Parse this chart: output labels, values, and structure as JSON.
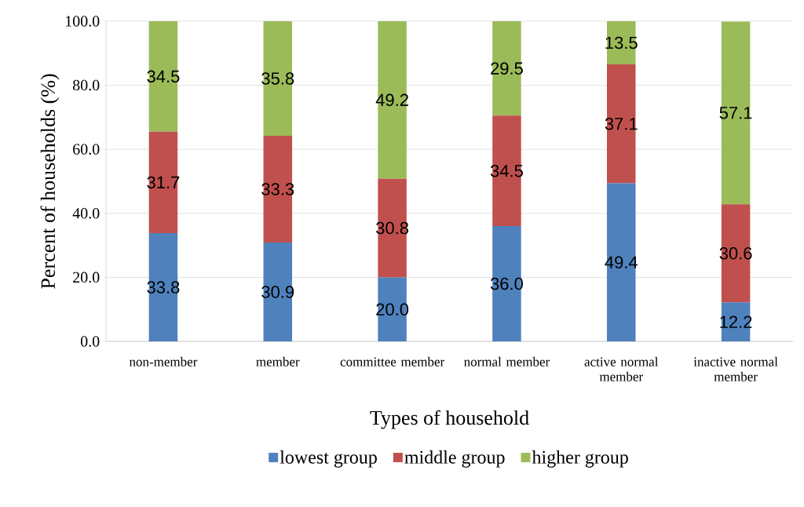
{
  "chart_data": {
    "type": "bar",
    "stacked": true,
    "xlabel": "Types of household",
    "ylabel": "Percent of households (%)",
    "categories": [
      "non-member",
      "member",
      "committee member",
      "normal member",
      "active normal member",
      "inactive normal member"
    ],
    "series": [
      {
        "name": "lowest group",
        "color": "#4f81bd",
        "values": [
          33.8,
          30.9,
          20.0,
          36.0,
          49.4,
          12.2
        ],
        "value_labels": [
          "33.8",
          "30.9",
          "20.0",
          "36.0",
          "49.4",
          "12.2"
        ]
      },
      {
        "name": "middle group",
        "color": "#c0504d",
        "values": [
          31.7,
          33.3,
          30.8,
          34.5,
          37.1,
          30.6
        ],
        "value_labels": [
          "31.7",
          "33.3",
          "30.8",
          "34.5",
          "37.1",
          "30.6"
        ]
      },
      {
        "name": "higher group",
        "color": "#9bbb59",
        "values": [
          34.5,
          35.8,
          49.2,
          29.5,
          13.5,
          57.1
        ],
        "value_labels": [
          "34.5",
          "35.8",
          "49.2",
          "29.5",
          "13.5",
          "57.1"
        ]
      }
    ],
    "ylim": [
      0,
      100
    ],
    "yticks": [
      {
        "value": 0,
        "label": "0.0"
      },
      {
        "value": 20,
        "label": "20.0"
      },
      {
        "value": 40,
        "label": "40.0"
      },
      {
        "value": 60,
        "label": "60.0"
      },
      {
        "value": 80,
        "label": "80.0"
      },
      {
        "value": 100,
        "label": "100.0"
      }
    ],
    "grid": "y",
    "legend": "bottom"
  }
}
